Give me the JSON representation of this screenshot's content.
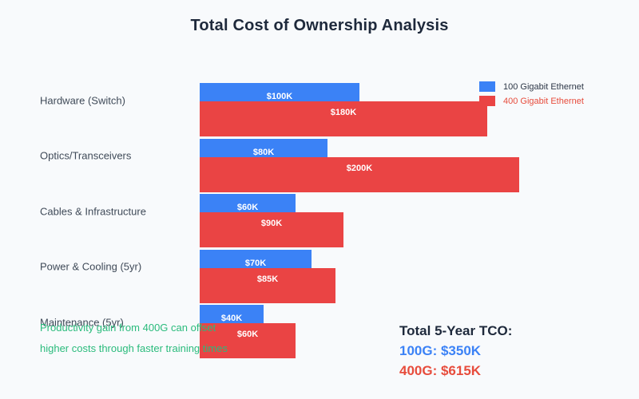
{
  "title": "Total Cost of Ownership Analysis",
  "colors": {
    "background": "#f8fafc",
    "title_text": "#1e293b",
    "category_text": "#3f4a58",
    "series_100g": "#3b82f6",
    "series_400g": "#ea4444",
    "legend_100g_text": "#2d3747",
    "legend_400g_text": "#e74c3c",
    "annotation_green": "#2abb7c",
    "summary_heading_text": "#1e293b",
    "summary_100g_text": "#3b82f6",
    "summary_400g_text": "#e74c3c",
    "bar_value_text": "#ffffff"
  },
  "chart_data": {
    "type": "bar",
    "orientation": "horizontal",
    "title": "Total Cost of Ownership Analysis",
    "unit": "USD thousands",
    "axis_range_k": [
      0,
      200
    ],
    "grid": false,
    "legend_position": "top-right",
    "categories": [
      "Hardware (Switch)",
      "Optics/Transceivers",
      "Cables & Infrastructure",
      "Power & Cooling (5yr)",
      "Maintenance (5yr)"
    ],
    "series": [
      {
        "name": "100 Gigabit Ethernet",
        "color": "#3b82f6",
        "values_k": [
          100,
          80,
          60,
          70,
          40
        ],
        "value_labels": [
          "$100K",
          "$80K",
          "$60K",
          "$70K",
          "$40K"
        ]
      },
      {
        "name": "400 Gigabit Ethernet",
        "color": "#ea4444",
        "values_k": [
          180,
          200,
          90,
          85,
          60
        ],
        "value_labels": [
          "$180K",
          "$200K",
          "$90K",
          "$85K",
          "$60K"
        ]
      }
    ]
  },
  "legend": [
    {
      "label": "100 Gigabit Ethernet"
    },
    {
      "label": "400 Gigabit Ethernet"
    }
  ],
  "annotation": {
    "line1": "Productivity gain from 400G can offset",
    "line2": "higher costs through faster training times"
  },
  "summary": {
    "heading": "Total 5-Year TCO:",
    "line_100g": "100G: $350K",
    "line_400g": "400G: $615K"
  }
}
